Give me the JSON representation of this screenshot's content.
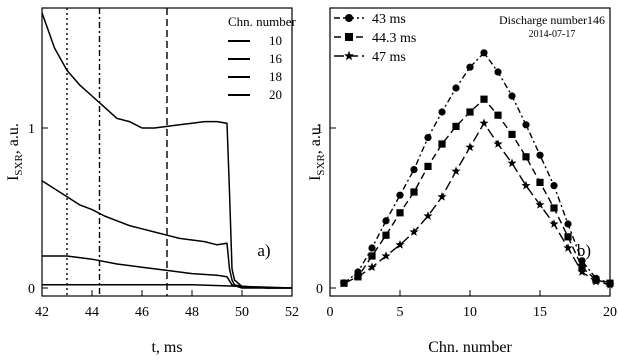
{
  "chart_data": [
    {
      "type": "line",
      "panel_label": "a)",
      "xlabel": "t, ms",
      "ylabel": "I",
      "ylabel_sub": "SXR",
      "ylabel_unit": ", a.u.",
      "xlim": [
        42,
        52
      ],
      "ylim": [
        -0.05,
        1.75
      ],
      "xticks": [
        42,
        44,
        46,
        48,
        50,
        52
      ],
      "yticks": [
        0,
        1
      ],
      "legend_title": "Chn. number",
      "legend_position": "top-right",
      "vlines": [
        {
          "x": 43,
          "style": "dotted"
        },
        {
          "x": 44.3,
          "style": "dash-dot"
        },
        {
          "x": 47,
          "style": "dashed"
        }
      ],
      "series": [
        {
          "name": "10",
          "x": [
            42,
            42.5,
            43,
            43.5,
            44,
            44.5,
            45,
            45.5,
            46,
            46.5,
            47,
            47.5,
            48,
            48.5,
            49,
            49.4,
            49.5,
            49.6,
            49.7,
            50,
            51,
            52
          ],
          "y": [
            1.72,
            1.5,
            1.36,
            1.27,
            1.2,
            1.13,
            1.06,
            1.04,
            1.0,
            1.0,
            1.01,
            1.02,
            1.03,
            1.04,
            1.04,
            1.03,
            0.6,
            0.12,
            0.05,
            0.01,
            0.0,
            0.0
          ]
        },
        {
          "name": "16",
          "x": [
            42,
            42.5,
            43,
            43.5,
            44,
            44.5,
            45,
            45.5,
            46,
            46.5,
            47,
            47.5,
            48,
            48.5,
            49,
            49.4,
            49.5,
            49.6,
            49.7,
            50,
            51,
            52
          ],
          "y": [
            0.67,
            0.62,
            0.57,
            0.52,
            0.49,
            0.45,
            0.42,
            0.39,
            0.37,
            0.35,
            0.33,
            0.31,
            0.3,
            0.29,
            0.27,
            0.28,
            0.12,
            0.05,
            0.02,
            0.01,
            0.0,
            0.0
          ]
        },
        {
          "name": "18",
          "x": [
            42,
            43,
            44,
            45,
            46,
            47,
            48,
            49,
            49.4,
            49.6,
            49.8,
            50,
            51,
            52
          ],
          "y": [
            0.2,
            0.2,
            0.18,
            0.15,
            0.13,
            0.11,
            0.09,
            0.08,
            0.07,
            0.02,
            0.01,
            0.0,
            0.0,
            0.0
          ]
        },
        {
          "name": "20",
          "x": [
            42,
            44,
            46,
            48,
            50,
            52
          ],
          "y": [
            0.02,
            0.02,
            0.02,
            0.02,
            0.01,
            0.0
          ]
        }
      ]
    },
    {
      "type": "line",
      "panel_label": "b)",
      "title": "Discharge number146",
      "subtitle": "2014-07-17",
      "xlabel": "Chn. number",
      "ylabel": "I",
      "ylabel_sub": "SXR",
      "ylabel_unit": ", a.u.",
      "xlim": [
        0,
        20
      ],
      "ylim": [
        -0.05,
        1.75
      ],
      "xticks": [
        0,
        5,
        10,
        15,
        20
      ],
      "yticks": [
        0,
        1
      ],
      "legend_position": "top-left",
      "x": [
        1,
        2,
        3,
        4,
        5,
        6,
        7,
        8,
        9,
        10,
        11,
        12,
        13,
        14,
        15,
        16,
        17,
        18,
        19,
        20
      ],
      "series": [
        {
          "name": "43 ms",
          "marker": "circle",
          "line": "dash-dot",
          "values": [
            0.03,
            0.1,
            0.25,
            0.42,
            0.58,
            0.74,
            0.94,
            1.1,
            1.25,
            1.38,
            1.47,
            1.35,
            1.2,
            1.02,
            0.83,
            0.64,
            0.4,
            0.17,
            0.06,
            0.03
          ]
        },
        {
          "name": "44.3 ms",
          "marker": "square",
          "line": "dashed",
          "values": [
            0.03,
            0.07,
            0.2,
            0.33,
            0.47,
            0.6,
            0.76,
            0.9,
            1.01,
            1.1,
            1.18,
            1.08,
            0.96,
            0.82,
            0.66,
            0.5,
            0.32,
            0.13,
            0.05,
            0.03
          ]
        },
        {
          "name": "47 ms",
          "marker": "star",
          "line": "long-dash",
          "values": [
            0.03,
            0.07,
            0.13,
            0.2,
            0.27,
            0.35,
            0.45,
            0.57,
            0.73,
            0.88,
            1.03,
            0.9,
            0.78,
            0.64,
            0.52,
            0.4,
            0.25,
            0.1,
            0.04,
            0.02
          ]
        }
      ]
    }
  ]
}
